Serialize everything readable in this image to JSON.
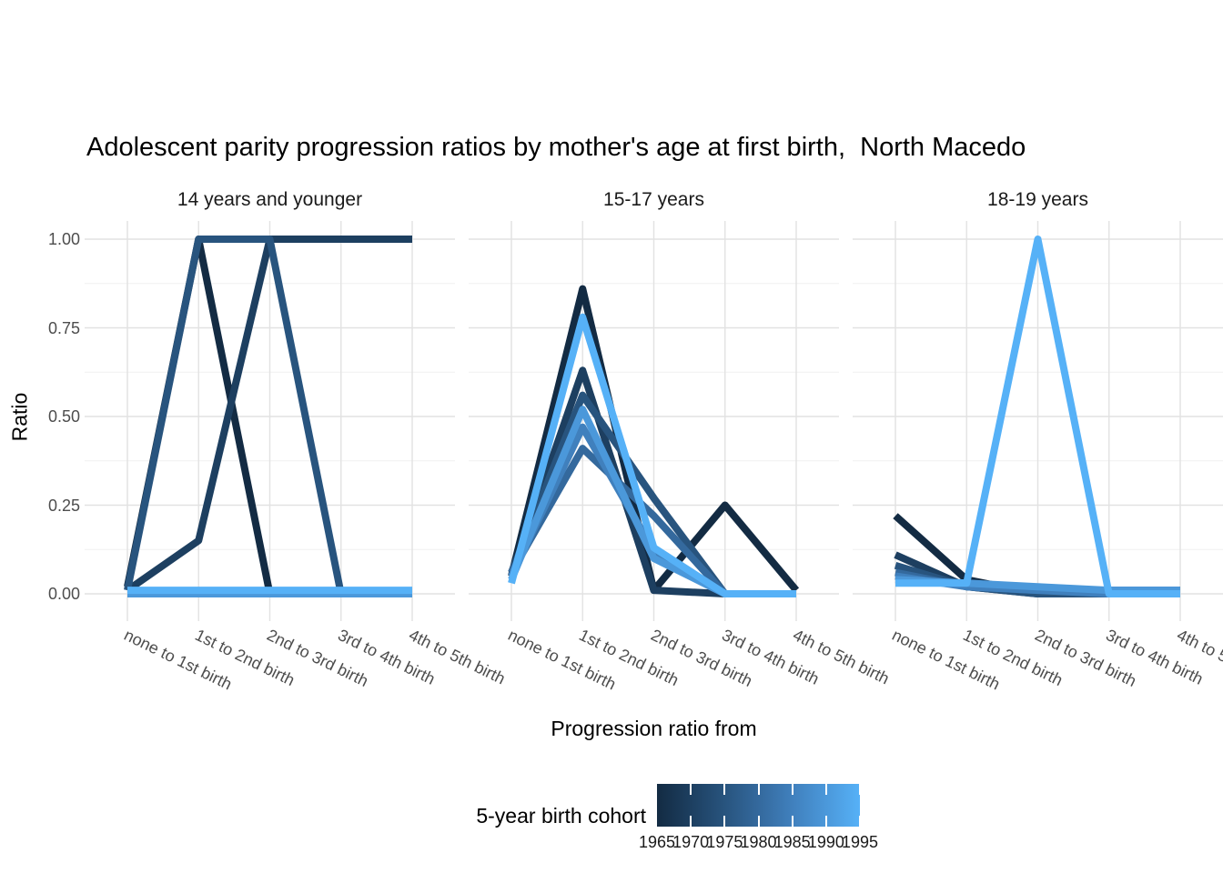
{
  "title": "Adolescent parity progression ratios by mother's age at first birth,  North Macedo",
  "y_axis": {
    "label": "Ratio",
    "ticks": [
      "1.00",
      "0.75",
      "0.50",
      "0.25",
      "0.00"
    ]
  },
  "x_axis": {
    "label": "Progression ratio from",
    "categories": [
      "none to 1st birth",
      "1st to 2nd birth",
      "2nd to 3rd birth",
      "3rd to 4th birth",
      "4th to 5th birth"
    ]
  },
  "legend": {
    "title": "5-year birth cohort",
    "ticks": [
      "1965",
      "1970",
      "1975",
      "1980",
      "1985",
      "1990",
      "1995"
    ],
    "gradient_low": "#132B43",
    "gradient_high": "#56B1F7"
  },
  "style": {
    "grid_major": "#e2e2e2",
    "grid_minor": "#f0f0f0",
    "line_width": 8,
    "cohort_colors": [
      "#132B43",
      "#1D3F60",
      "#28547E",
      "#34699D",
      "#4080BD",
      "#4B98DA",
      "#56B1F7"
    ]
  },
  "chart_data": {
    "type": "line",
    "title": "Adolescent parity progression ratios by mother's age at first birth,  North Macedo",
    "xlabel": "Progression ratio from",
    "ylabel": "Ratio",
    "ylim": [
      0,
      1
    ],
    "yticks": [
      0.0,
      0.25,
      0.5,
      0.75,
      1.0
    ],
    "legend_title": "5-year birth cohort",
    "legend_position": "bottom",
    "grid": true,
    "categories": [
      "none to 1st birth",
      "1st to 2nd birth",
      "2nd to 3rd birth",
      "3rd to 4th birth",
      "4th to 5th birth"
    ],
    "facets": [
      {
        "label": "14 years and younger",
        "series": [
          {
            "cohort": "1965",
            "values": [
              0.02,
              1.0,
              0.0,
              0.0,
              0.0
            ]
          },
          {
            "cohort": "1970",
            "values": [
              0.01,
              0.15,
              1.0,
              1.0,
              1.0
            ]
          },
          {
            "cohort": "1975",
            "values": [
              0.01,
              1.0,
              1.0,
              0.0,
              0.0
            ]
          },
          {
            "cohort": "1980",
            "values": [
              0.0,
              0.0,
              0.0,
              0.0,
              0.0
            ]
          },
          {
            "cohort": "1985",
            "values": [
              0.0,
              0.0,
              0.0,
              0.0,
              0.0
            ]
          },
          {
            "cohort": "1990",
            "values": [
              0.0,
              0.0,
              0.0,
              0.0,
              0.0
            ]
          },
          {
            "cohort": "1995",
            "values": [
              0.01,
              0.01,
              0.01,
              0.01,
              0.01
            ]
          }
        ]
      },
      {
        "label": "15-17 years",
        "series": [
          {
            "cohort": "1965",
            "values": [
              0.05,
              0.86,
              0.01,
              0.25,
              0.01
            ]
          },
          {
            "cohort": "1970",
            "values": [
              0.05,
              0.63,
              0.01,
              0.0,
              0.0
            ]
          },
          {
            "cohort": "1975",
            "values": [
              0.06,
              0.56,
              0.27,
              0.0,
              0.0
            ]
          },
          {
            "cohort": "1980",
            "values": [
              0.06,
              0.41,
              0.22,
              0.0,
              0.0
            ]
          },
          {
            "cohort": "1985",
            "values": [
              0.05,
              0.47,
              0.12,
              0.0,
              0.0
            ]
          },
          {
            "cohort": "1990",
            "values": [
              0.04,
              0.52,
              0.1,
              0.0,
              0.0
            ]
          },
          {
            "cohort": "1995",
            "values": [
              0.03,
              0.78,
              0.13,
              0.0,
              0.0
            ]
          }
        ]
      },
      {
        "label": "18-19 years",
        "series": [
          {
            "cohort": "1965",
            "values": [
              0.22,
              0.04,
              0.0,
              0.0,
              0.0
            ]
          },
          {
            "cohort": "1970",
            "values": [
              0.11,
              0.02,
              0.0,
              0.0,
              0.0
            ]
          },
          {
            "cohort": "1975",
            "values": [
              0.08,
              0.02,
              0.0,
              0.0,
              0.0
            ]
          },
          {
            "cohort": "1980",
            "values": [
              0.06,
              0.02,
              0.01,
              0.01,
              0.01
            ]
          },
          {
            "cohort": "1985",
            "values": [
              0.05,
              0.02,
              0.01,
              0.0,
              0.0
            ]
          },
          {
            "cohort": "1990",
            "values": [
              0.04,
              0.03,
              0.02,
              0.01,
              0.01
            ]
          },
          {
            "cohort": "1995",
            "values": [
              0.03,
              0.03,
              1.0,
              0.0,
              0.0
            ]
          }
        ]
      }
    ]
  }
}
